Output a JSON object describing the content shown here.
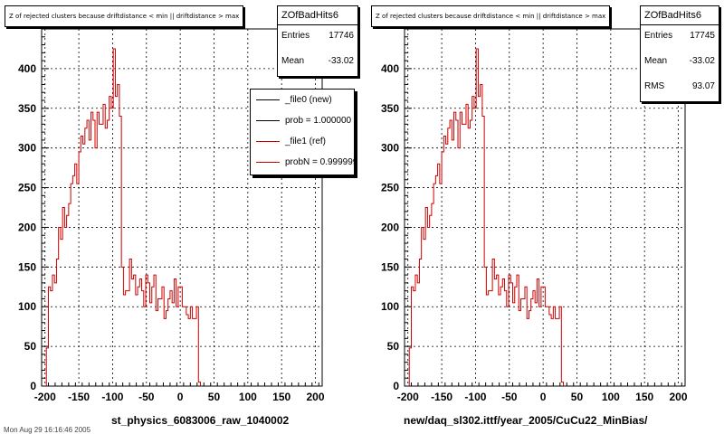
{
  "chart_data": [
    {
      "type": "histogram",
      "title": "Z of rejected clusters because driftdistance < min || driftdistance > max",
      "xlabel": "st_physics_6083006_raw_1040002",
      "xlim": [
        -205,
        210
      ],
      "ylim": [
        0,
        450
      ],
      "xticks": [
        -200,
        -150,
        -100,
        -50,
        0,
        50,
        100,
        150,
        200
      ],
      "yticks": [
        0,
        50,
        100,
        150,
        200,
        250,
        300,
        350,
        400
      ],
      "grid": true,
      "bin_width": 3,
      "x_start": -198,
      "stats": {
        "name": "ZOfBadHits6",
        "entries_label": "Entries",
        "entries": "17746",
        "mean_label": "Mean",
        "mean": "-33.02"
      },
      "legend": {
        "placement": "top-right",
        "entries": [
          {
            "label": "_file0 (new)",
            "color": "#000000"
          },
          {
            "label": "prob = 1.000000",
            "color": "#000000"
          },
          {
            "label": "_file1 (ref)",
            "color": "#cc0000"
          },
          {
            "label": "probN = 0.999999",
            "color": "#cc0000"
          }
        ]
      },
      "series": [
        {
          "name": "_file1 (ref)",
          "color": "#cc0000",
          "values": [
            48,
            125,
            120,
            140,
            130,
            160,
            200,
            185,
            225,
            200,
            215,
            230,
            255,
            265,
            280,
            255,
            295,
            315,
            305,
            325,
            335,
            310,
            345,
            335,
            300,
            345,
            330,
            330,
            355,
            325,
            335,
            365,
            350,
            425,
            365,
            380,
            340,
            150,
            115,
            120,
            120,
            160,
            135,
            140,
            115,
            125,
            135,
            120,
            100,
            140,
            130,
            105,
            125,
            140,
            95,
            110,
            110,
            125,
            85,
            95,
            110,
            120,
            105,
            135,
            100,
            125,
            125,
            100,
            100,
            90,
            85,
            100,
            85,
            85,
            100,
            5
          ]
        }
      ]
    },
    {
      "type": "histogram",
      "title": "Z of rejected clusters because driftdistance < min || driftdistance > max",
      "xlabel": "new/daq_sl302.ittf/year_2005/CuCu22_MinBias/",
      "xlim": [
        -205,
        210
      ],
      "ylim": [
        0,
        450
      ],
      "xticks": [
        -200,
        -150,
        -100,
        -50,
        0,
        50,
        100,
        150,
        200
      ],
      "yticks": [
        0,
        50,
        100,
        150,
        200,
        250,
        300,
        350,
        400
      ],
      "grid": true,
      "bin_width": 3,
      "x_start": -198,
      "stats": {
        "name": "ZOfBadHits6",
        "entries_label": "Entries",
        "entries": "17745",
        "mean_label": "Mean",
        "mean": "-33.02",
        "rms_label": "RMS",
        "rms": "93.07"
      },
      "series": [
        {
          "name": "",
          "color": "#cc0000",
          "values": [
            48,
            125,
            120,
            140,
            130,
            160,
            200,
            185,
            225,
            200,
            215,
            230,
            255,
            265,
            280,
            255,
            295,
            315,
            305,
            325,
            335,
            310,
            345,
            335,
            300,
            345,
            330,
            330,
            355,
            325,
            335,
            365,
            350,
            425,
            365,
            380,
            340,
            150,
            115,
            120,
            120,
            160,
            135,
            140,
            115,
            125,
            135,
            120,
            100,
            140,
            130,
            105,
            125,
            140,
            95,
            110,
            110,
            125,
            85,
            95,
            110,
            120,
            105,
            135,
            100,
            125,
            125,
            100,
            100,
            90,
            85,
            100,
            85,
            85,
            100,
            5
          ]
        }
      ]
    }
  ],
  "footer": "Mon Aug 29 16:16:46 2005"
}
